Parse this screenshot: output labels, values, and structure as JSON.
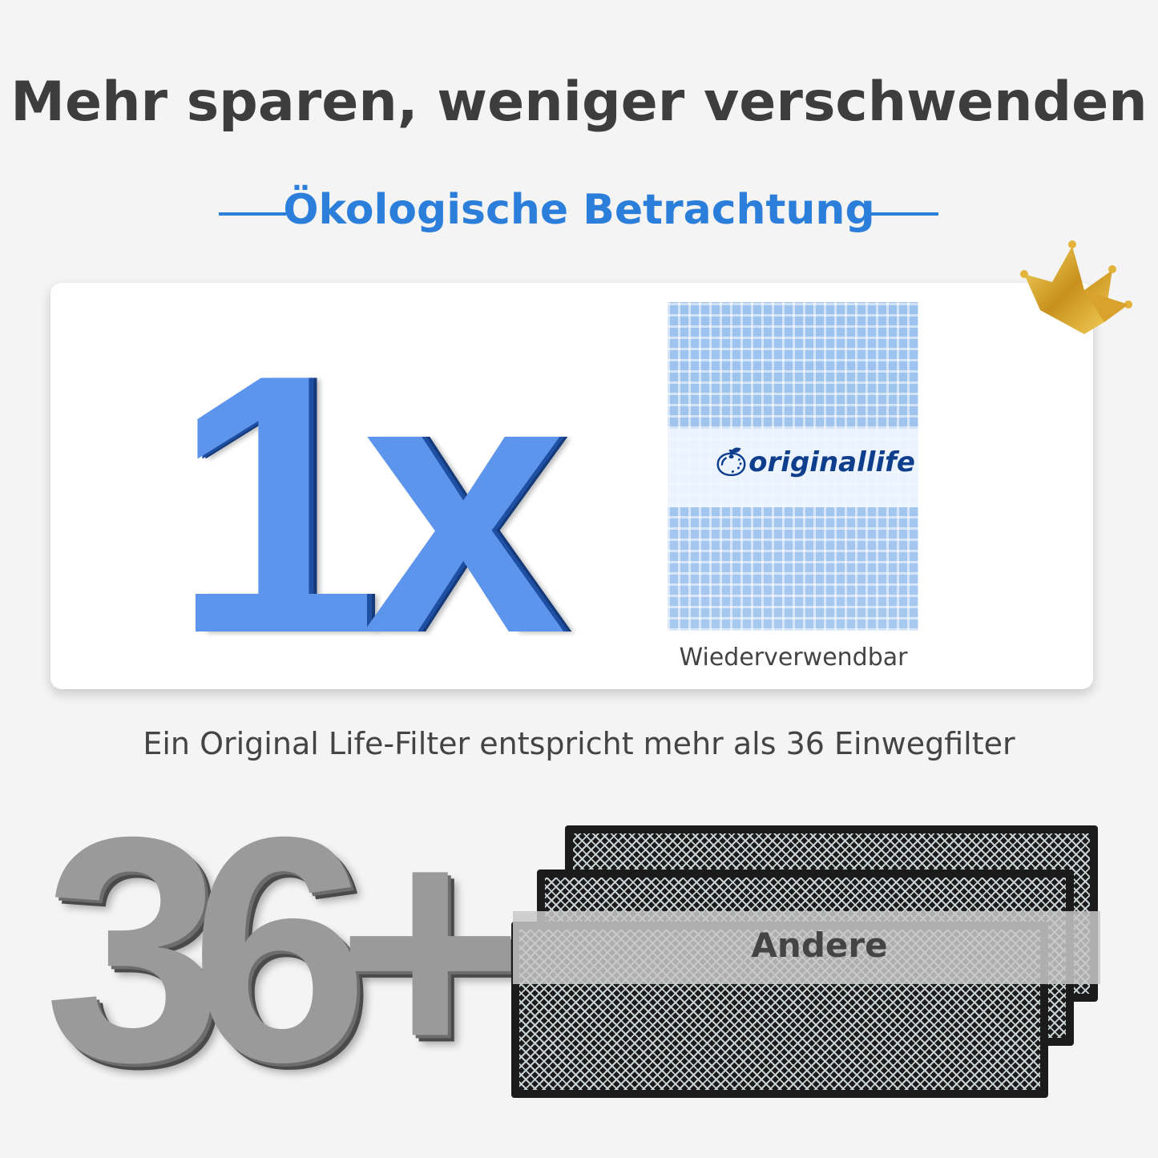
{
  "header": {
    "title": "Mehr sparen, weniger verschwenden",
    "subtitle": "Ökologische Betrachtung"
  },
  "card": {
    "count_label": "1x",
    "product_logo": "originallife",
    "product_label": "Wiederverwendbar",
    "badge_icon": "crown-icon"
  },
  "caption": "Ein Original Life-Filter entspricht mehr als 36 Einwegfilter",
  "comparison": {
    "count_label": "36+",
    "others_label": "Andere"
  },
  "colors": {
    "accent": "#2b7ed9",
    "title": "#3d3d3d",
    "background": "#f4f4f4"
  }
}
